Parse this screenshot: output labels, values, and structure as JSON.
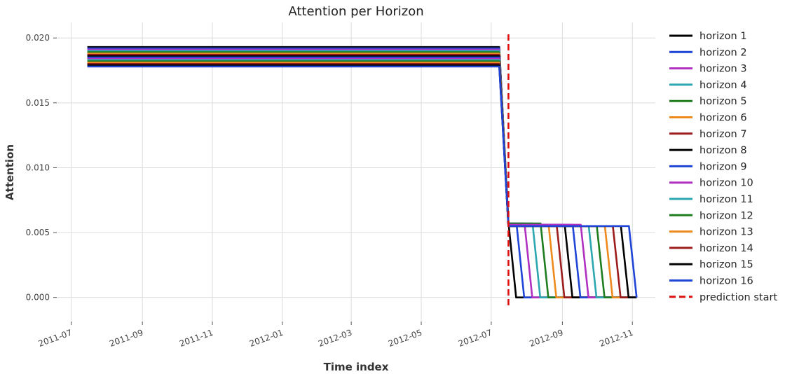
{
  "chart_data": {
    "type": "line",
    "title": "Attention per Horizon",
    "xlabel": "Time index",
    "ylabel": "Attention",
    "xlim": [
      "2011-06-19",
      "2012-11-21"
    ],
    "ylim": [
      -0.0018,
      0.0212
    ],
    "xticks": [
      "2011-07",
      "2011-09",
      "2011-11",
      "2012-01",
      "2012-03",
      "2012-05",
      "2012-07",
      "2012-09",
      "2012-11"
    ],
    "yticks": [
      "0.000",
      "0.005",
      "0.010",
      "0.015",
      "0.020"
    ],
    "grid": true,
    "legend_position": "right",
    "history_start": "2011-07-15",
    "history_end": "2012-07-08",
    "prediction_start": "2012-07-16",
    "series": [
      {
        "name": "horizon 1",
        "color": "#000000",
        "hist_value": 0.0193,
        "pred_value": 0.0058,
        "pred_end": "2012-07-16"
      },
      {
        "name": "horizon 2",
        "color": "#1f45d6",
        "hist_value": 0.0192,
        "pred_value": 0.0057,
        "pred_end": "2012-07-23"
      },
      {
        "name": "horizon 3",
        "color": "#b031c1",
        "hist_value": 0.0191,
        "pred_value": 0.0057,
        "pred_end": "2012-07-30"
      },
      {
        "name": "horizon 4",
        "color": "#2ca6b0",
        "hist_value": 0.019,
        "pred_value": 0.0057,
        "pred_end": "2012-08-06"
      },
      {
        "name": "horizon 5",
        "color": "#1e7d1e",
        "hist_value": 0.0189,
        "pred_value": 0.0057,
        "pred_end": "2012-08-13"
      },
      {
        "name": "horizon 6",
        "color": "#ee8a1d",
        "hist_value": 0.0188,
        "pred_value": 0.0056,
        "pred_end": "2012-08-20"
      },
      {
        "name": "horizon 7",
        "color": "#9c1c1c",
        "hist_value": 0.0187,
        "pred_value": 0.0056,
        "pred_end": "2012-08-27"
      },
      {
        "name": "horizon 8",
        "color": "#000000",
        "hist_value": 0.0186,
        "pred_value": 0.0056,
        "pred_end": "2012-09-03"
      },
      {
        "name": "horizon 9",
        "color": "#1f45d6",
        "hist_value": 0.0185,
        "pred_value": 0.0056,
        "pred_end": "2012-09-10"
      },
      {
        "name": "horizon 10",
        "color": "#b031c1",
        "hist_value": 0.0184,
        "pred_value": 0.0056,
        "pred_end": "2012-09-17"
      },
      {
        "name": "horizon 11",
        "color": "#2ca6b0",
        "hist_value": 0.0183,
        "pred_value": 0.0055,
        "pred_end": "2012-09-24"
      },
      {
        "name": "horizon 12",
        "color": "#1e7d1e",
        "hist_value": 0.0182,
        "pred_value": 0.0055,
        "pred_end": "2012-10-01"
      },
      {
        "name": "horizon 13",
        "color": "#ee8a1d",
        "hist_value": 0.0181,
        "pred_value": 0.0055,
        "pred_end": "2012-10-08"
      },
      {
        "name": "horizon 14",
        "color": "#9c1c1c",
        "hist_value": 0.018,
        "pred_value": 0.0055,
        "pred_end": "2012-10-15"
      },
      {
        "name": "horizon 15",
        "color": "#000000",
        "hist_value": 0.0179,
        "pred_value": 0.0055,
        "pred_end": "2012-10-22"
      },
      {
        "name": "horizon 16",
        "color": "#1f45d6",
        "hist_value": 0.0178,
        "pred_value": 0.0055,
        "pred_end": "2012-10-29"
      }
    ],
    "marker": {
      "name": "prediction start",
      "color": "#dd1111",
      "style": "dashed"
    }
  }
}
